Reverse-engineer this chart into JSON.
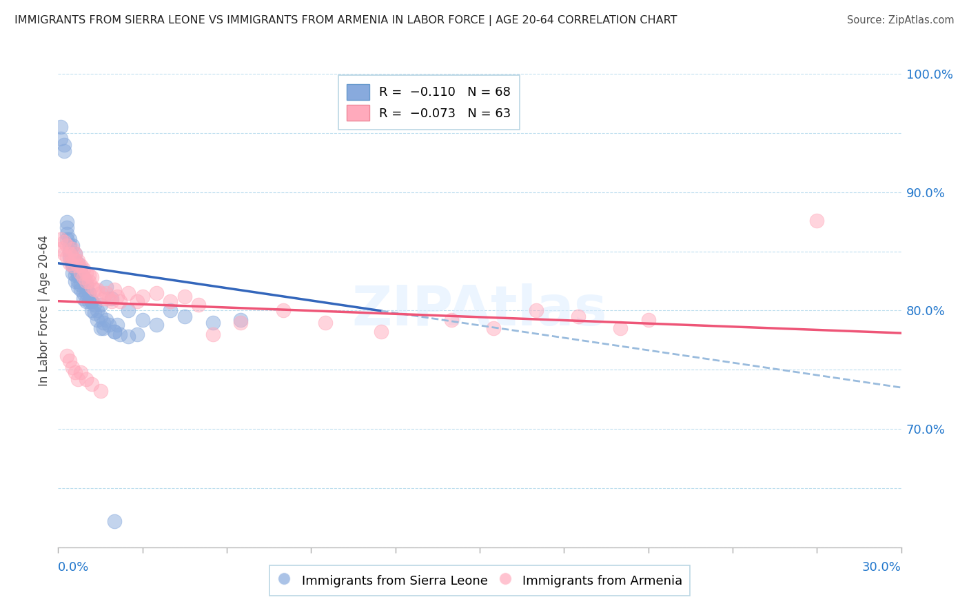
{
  "title": "IMMIGRANTS FROM SIERRA LEONE VS IMMIGRANTS FROM ARMENIA IN LABOR FORCE | AGE 20-64 CORRELATION CHART",
  "source": "Source: ZipAtlas.com",
  "ylabel": "In Labor Force | Age 20-64",
  "xlim": [
    0.0,
    0.3
  ],
  "ylim": [
    0.6,
    1.0
  ],
  "yticks": [
    0.6,
    0.65,
    0.7,
    0.75,
    0.8,
    0.85,
    0.9,
    0.95,
    1.0
  ],
  "ytick_labels_right": [
    "",
    "",
    "70.0%",
    "",
    "80.0%",
    "",
    "90.0%",
    "",
    "100.0%"
  ],
  "color_sierra": "#88AADD",
  "color_armenia": "#FFAABC",
  "trend_sierra_color": "#3366BB",
  "trend_armenia_color": "#EE5577",
  "dashed_color": "#99BBDD",
  "sl_trend_intercept": 0.84,
  "sl_trend_slope": -0.35,
  "arm_trend_intercept": 0.808,
  "arm_trend_slope": -0.09,
  "sl_trend_solid_end": 0.115,
  "sl_trend_dash_end": 0.3,
  "arm_trend_solid_end": 0.3,
  "sierra_leone_x": [
    0.001,
    0.001,
    0.002,
    0.002,
    0.003,
    0.003,
    0.003,
    0.004,
    0.004,
    0.004,
    0.005,
    0.005,
    0.005,
    0.005,
    0.006,
    0.006,
    0.006,
    0.007,
    0.007,
    0.007,
    0.008,
    0.008,
    0.009,
    0.009,
    0.01,
    0.01,
    0.01,
    0.011,
    0.011,
    0.012,
    0.012,
    0.013,
    0.013,
    0.014,
    0.015,
    0.015,
    0.016,
    0.017,
    0.018,
    0.02,
    0.021,
    0.022,
    0.025,
    0.028,
    0.03,
    0.035,
    0.04,
    0.045,
    0.055,
    0.065,
    0.003,
    0.004,
    0.005,
    0.006,
    0.007,
    0.008,
    0.009,
    0.01,
    0.011,
    0.012,
    0.014,
    0.016,
    0.02,
    0.025,
    0.02,
    0.019,
    0.017,
    0.015
  ],
  "sierra_leone_y": [
    0.955,
    0.945,
    0.94,
    0.935,
    0.875,
    0.865,
    0.86,
    0.85,
    0.845,
    0.855,
    0.84,
    0.838,
    0.832,
    0.845,
    0.83,
    0.825,
    0.835,
    0.825,
    0.82,
    0.83,
    0.818,
    0.822,
    0.815,
    0.81,
    0.822,
    0.808,
    0.815,
    0.808,
    0.815,
    0.8,
    0.808,
    0.798,
    0.805,
    0.792,
    0.785,
    0.795,
    0.785,
    0.792,
    0.788,
    0.782,
    0.788,
    0.78,
    0.8,
    0.78,
    0.792,
    0.788,
    0.8,
    0.795,
    0.79,
    0.792,
    0.87,
    0.86,
    0.855,
    0.848,
    0.84,
    0.835,
    0.828,
    0.82,
    0.815,
    0.808,
    0.8,
    0.79,
    0.782,
    0.778,
    0.622,
    0.81,
    0.82,
    0.805
  ],
  "armenia_x": [
    0.001,
    0.001,
    0.002,
    0.002,
    0.003,
    0.003,
    0.004,
    0.004,
    0.005,
    0.005,
    0.005,
    0.006,
    0.006,
    0.007,
    0.007,
    0.008,
    0.008,
    0.009,
    0.009,
    0.01,
    0.01,
    0.011,
    0.011,
    0.012,
    0.012,
    0.013,
    0.014,
    0.015,
    0.016,
    0.017,
    0.018,
    0.019,
    0.02,
    0.021,
    0.022,
    0.025,
    0.028,
    0.03,
    0.035,
    0.04,
    0.045,
    0.05,
    0.055,
    0.065,
    0.08,
    0.095,
    0.115,
    0.14,
    0.155,
    0.17,
    0.185,
    0.2,
    0.21,
    0.003,
    0.004,
    0.005,
    0.006,
    0.007,
    0.008,
    0.01,
    0.012,
    0.015,
    0.27
  ],
  "armenia_y": [
    0.86,
    0.852,
    0.858,
    0.848,
    0.855,
    0.845,
    0.848,
    0.84,
    0.845,
    0.838,
    0.852,
    0.842,
    0.848,
    0.838,
    0.842,
    0.832,
    0.838,
    0.828,
    0.835,
    0.825,
    0.832,
    0.825,
    0.83,
    0.82,
    0.828,
    0.818,
    0.818,
    0.815,
    0.81,
    0.815,
    0.81,
    0.808,
    0.818,
    0.812,
    0.808,
    0.815,
    0.808,
    0.812,
    0.815,
    0.808,
    0.812,
    0.805,
    0.78,
    0.79,
    0.8,
    0.79,
    0.782,
    0.792,
    0.785,
    0.8,
    0.795,
    0.785,
    0.792,
    0.762,
    0.758,
    0.752,
    0.748,
    0.742,
    0.748,
    0.742,
    0.738,
    0.732,
    0.876
  ]
}
